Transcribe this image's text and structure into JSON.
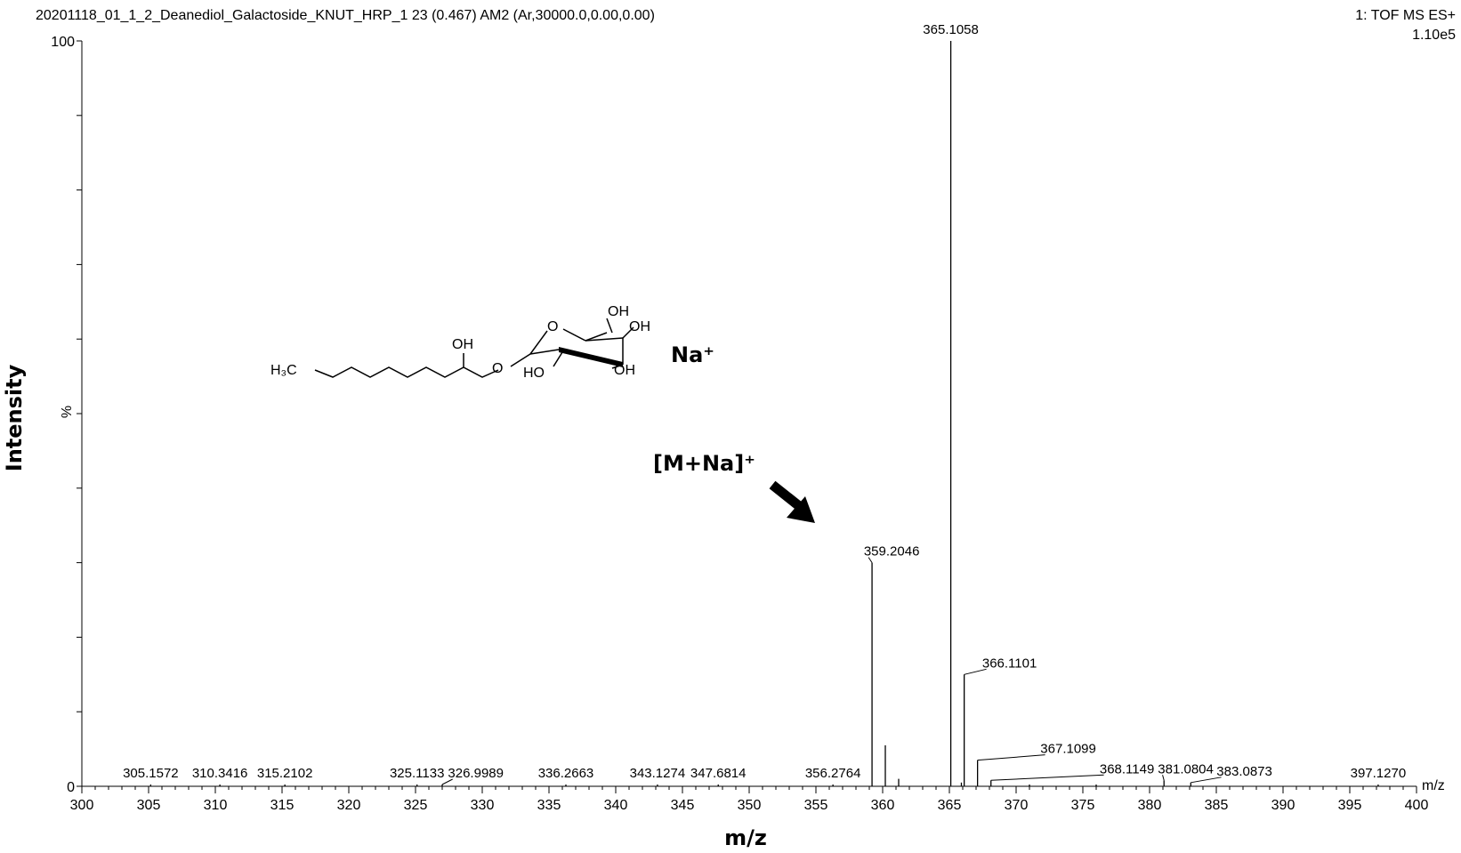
{
  "header": {
    "sample": "20201118_01_1_2_Deanediol_Galactoside_KNUT_HRP_1 23 (0.467) AM2 (Ar,30000.0,0.00,0.00)",
    "mode": "1: TOF MS ES+",
    "max_intensity": "1.10e5"
  },
  "structure": {
    "h3c": "H₃C",
    "oh_chain": "OH",
    "o_link": "O",
    "o_ring": "O",
    "oh_top": "OH",
    "oh_right": "OH",
    "ho_left": "HO",
    "oh_bottom": "OH",
    "counter_ion": "Na⁺"
  },
  "annotation": {
    "label": "[M+Na]⁺",
    "arrow": "arrow-icon"
  },
  "chart_data": {
    "type": "bar",
    "title": "",
    "xlabel": "m/z",
    "ylabel": "Intensity",
    "y_unit": "%",
    "x_unit_label": "m/z",
    "xlim": [
      300,
      400
    ],
    "ylim": [
      0,
      100
    ],
    "x_ticks": [
      300,
      305,
      310,
      315,
      320,
      325,
      330,
      335,
      340,
      345,
      350,
      355,
      360,
      365,
      370,
      375,
      380,
      385,
      390,
      395,
      400
    ],
    "y_ticks": [
      0,
      100
    ],
    "labeled_peaks": [
      {
        "mz": 305.1572,
        "intensity": 0.1,
        "label": "305.1572"
      },
      {
        "mz": 310.3416,
        "intensity": 0.1,
        "label": "310.3416"
      },
      {
        "mz": 315.2102,
        "intensity": 0.1,
        "label": "315.2102"
      },
      {
        "mz": 325.1133,
        "intensity": 0.1,
        "label": "325.1133"
      },
      {
        "mz": 326.9989,
        "intensity": 0.1,
        "label": "326.9989"
      },
      {
        "mz": 336.2663,
        "intensity": 0.1,
        "label": "336.2663"
      },
      {
        "mz": 343.1274,
        "intensity": 0.1,
        "label": "343.1274"
      },
      {
        "mz": 347.6814,
        "intensity": 0.1,
        "label": "347.6814"
      },
      {
        "mz": 356.2764,
        "intensity": 0.1,
        "label": "356.2764"
      },
      {
        "mz": 359.2046,
        "intensity": 30.0,
        "label": "359.2046"
      },
      {
        "mz": 365.1058,
        "intensity": 100.0,
        "label": "365.1058"
      },
      {
        "mz": 366.1101,
        "intensity": 15.0,
        "label": "366.1101"
      },
      {
        "mz": 367.1099,
        "intensity": 3.5,
        "label": "367.1099"
      },
      {
        "mz": 368.1149,
        "intensity": 0.8,
        "label": "368.1149"
      },
      {
        "mz": 381.0804,
        "intensity": 0.8,
        "label": "381.0804"
      },
      {
        "mz": 383.0873,
        "intensity": 0.5,
        "label": "383.0873"
      },
      {
        "mz": 397.127,
        "intensity": 0.1,
        "label": "397.1270"
      }
    ],
    "unlabeled_peaks": [
      {
        "mz": 360.2,
        "intensity": 5.5
      },
      {
        "mz": 361.2,
        "intensity": 1.0
      },
      {
        "mz": 365.9,
        "intensity": 0.5
      },
      {
        "mz": 371.0,
        "intensity": 0.2
      },
      {
        "mz": 376.0,
        "intensity": 0.15
      }
    ]
  }
}
